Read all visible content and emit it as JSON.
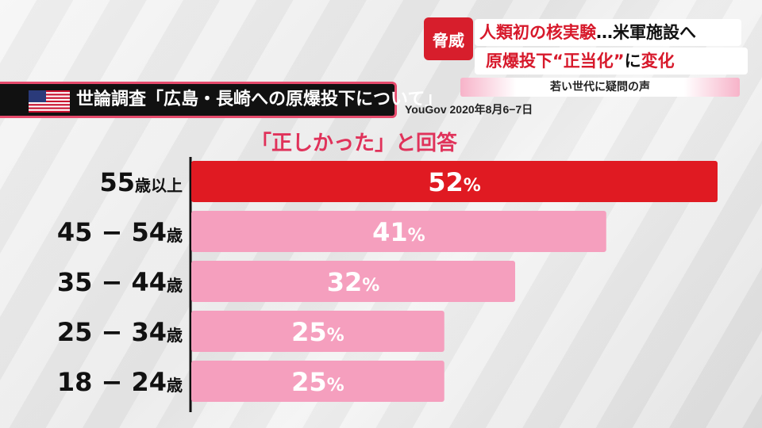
{
  "news": {
    "tag": "脅威",
    "headline_1_red": "人類初の核実験",
    "headline_1_black": "…米軍施設へ",
    "headline_2_red": "原爆投下“正当化”",
    "headline_2_black": "に",
    "headline_2_red2": "変化",
    "sub_headline": "若い世代に疑問の声"
  },
  "title": "世論調査「広島・長崎への原爆投下について」",
  "source": "YouGov 2020年8月6−7日",
  "subtitle": "「正しかった」と回答",
  "colors": {
    "highlight": "#e01a22",
    "bar": "#f59fbe",
    "accent": "#e0325a"
  },
  "chart_data": {
    "type": "bar",
    "orientation": "horizontal",
    "title": "「正しかった」と回答",
    "categories": [
      "55歳以上",
      "45−54歳",
      "35−44歳",
      "25−34歳",
      "18−24歳"
    ],
    "category_parts": [
      [
        "55",
        "歳以上"
      ],
      [
        "45 − 54",
        "歳"
      ],
      [
        "35 − 44",
        "歳"
      ],
      [
        "25 − 34",
        "歳"
      ],
      [
        "18 − 24",
        "歳"
      ]
    ],
    "values": [
      52,
      41,
      32,
      25,
      25
    ],
    "value_labels": [
      "52%",
      "41%",
      "32%",
      "25%",
      "25%"
    ],
    "unit": "%",
    "highlight_index": 0,
    "xlim": [
      0,
      52
    ],
    "grid": false,
    "legend": "none"
  }
}
